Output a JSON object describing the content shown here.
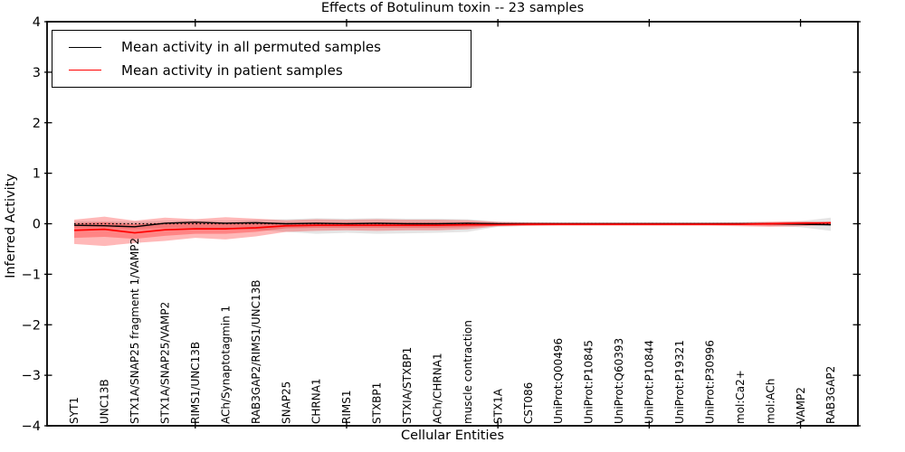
{
  "figure": {
    "title": "Effects of Botulinum toxin -- 23 samples",
    "xlabel": "Cellular Entities",
    "ylabel": "Inferred Activity"
  },
  "legend": {
    "entries": [
      {
        "label": "Mean activity in all permuted samples",
        "color": "#000000"
      },
      {
        "label": "Mean activity in patient samples",
        "color": "#ff0000"
      }
    ]
  },
  "chart_data": {
    "type": "line",
    "title": "Effects of Botulinum toxin -- 23 samples",
    "xlabel": "Cellular Entities",
    "ylabel": "Inferred Activity",
    "ylim": [
      -4,
      4
    ],
    "yticks": [
      -4,
      -3,
      -2,
      -1,
      0,
      1,
      2,
      3,
      4
    ],
    "xtick_positions": [
      5,
      10,
      15,
      20,
      25
    ],
    "legend_position": "upper left",
    "grid": false,
    "zero_line": {
      "y": 0,
      "style": "dotted",
      "color": "#000000"
    },
    "categories": [
      "SYT1",
      "UNC13B",
      "STX1A/SNAP25 fragment 1/VAMP2",
      "STX1A/SNAP25/VAMP2",
      "RIMS1/UNC13B",
      "ACh/Synaptotagmin 1",
      "RAB3GAP2/RIMS1/UNC13B",
      "SNAP25",
      "CHRNA1",
      "RIMS1",
      "STXBP1",
      "STXIA/STXBP1",
      "ACh/CHRNA1",
      "muscle contraction",
      "STX1A",
      "CST086",
      "UniProt:Q00496",
      "UniProt:P10845",
      "UniProt:Q60393",
      "UniProt:P10844",
      "UniProt:P19321",
      "UniProt:P30996",
      "mol:Ca2+",
      "mol:ACh",
      "VAMP2",
      "RAB3GAP2"
    ],
    "series": [
      {
        "name": "Mean activity in all permuted samples",
        "color": "#000000",
        "values": [
          -0.03,
          -0.04,
          -0.06,
          0.01,
          0.03,
          0.01,
          0.02,
          0.0,
          0.01,
          0.0,
          0.01,
          0.0,
          0.0,
          0.01,
          0.0,
          0.0,
          0.0,
          0.0,
          0.0,
          0.0,
          0.0,
          0.0,
          0.0,
          0.0,
          -0.01,
          -0.02
        ]
      },
      {
        "name": "Mean activity in patient samples",
        "color": "#ff0000",
        "values": [
          -0.13,
          -0.11,
          -0.18,
          -0.12,
          -0.1,
          -0.1,
          -0.08,
          -0.04,
          -0.03,
          -0.03,
          -0.03,
          -0.03,
          -0.03,
          -0.02,
          -0.02,
          -0.01,
          -0.01,
          -0.01,
          -0.01,
          -0.01,
          -0.01,
          -0.01,
          -0.01,
          0.0,
          0.01,
          0.02
        ]
      }
    ],
    "bands": [
      {
        "name": "permuted-samples-range",
        "color": "rgba(0,0,0,0.10)",
        "upper": [
          0.05,
          0.05,
          0.04,
          0.06,
          0.07,
          0.06,
          0.08,
          0.09,
          0.11,
          0.1,
          0.11,
          0.1,
          0.1,
          0.09,
          0.04,
          0.025,
          0.02,
          0.02,
          0.02,
          0.02,
          0.02,
          0.02,
          0.02,
          0.03,
          0.05,
          0.12
        ],
        "lower": [
          -0.08,
          -0.08,
          -0.1,
          -0.08,
          -0.08,
          -0.09,
          -0.12,
          -0.16,
          -0.2,
          -0.18,
          -0.2,
          -0.19,
          -0.18,
          -0.16,
          -0.06,
          -0.04,
          -0.03,
          -0.03,
          -0.03,
          -0.03,
          -0.03,
          -0.03,
          -0.03,
          -0.04,
          -0.07,
          -0.14
        ]
      },
      {
        "name": "patient-samples-outer",
        "color": "rgba(255,0,0,0.28)",
        "upper": [
          0.08,
          0.14,
          0.06,
          0.12,
          0.09,
          0.13,
          0.1,
          0.07,
          0.09,
          0.08,
          0.09,
          0.08,
          0.08,
          0.07,
          0.035,
          0.03,
          0.025,
          0.025,
          0.025,
          0.025,
          0.025,
          0.025,
          0.03,
          0.04,
          0.05,
          0.025
        ],
        "lower": [
          -0.4,
          -0.44,
          -0.38,
          -0.34,
          -0.28,
          -0.31,
          -0.25,
          -0.16,
          -0.14,
          -0.13,
          -0.14,
          -0.13,
          -0.13,
          -0.11,
          -0.05,
          -0.045,
          -0.04,
          -0.04,
          -0.04,
          -0.04,
          -0.04,
          -0.04,
          -0.05,
          -0.06,
          -0.05,
          -0.02
        ]
      },
      {
        "name": "patient-samples-inner",
        "color": "rgba(255,0,0,0.28)",
        "upper": [
          0.01,
          0.03,
          -0.01,
          0.02,
          0.02,
          0.02,
          0.02,
          0.01,
          0.02,
          0.02,
          0.02,
          0.02,
          0.02,
          0.02,
          0.01,
          0.01,
          0.01,
          0.01,
          0.01,
          0.01,
          0.01,
          0.01,
          0.01,
          0.02,
          0.03,
          0.02
        ],
        "lower": [
          -0.28,
          -0.26,
          -0.3,
          -0.24,
          -0.2,
          -0.2,
          -0.16,
          -0.09,
          -0.08,
          -0.08,
          -0.08,
          -0.08,
          -0.08,
          -0.07,
          -0.035,
          -0.03,
          -0.025,
          -0.025,
          -0.025,
          -0.025,
          -0.025,
          -0.025,
          -0.03,
          -0.035,
          -0.02,
          -0.01
        ]
      }
    ]
  }
}
